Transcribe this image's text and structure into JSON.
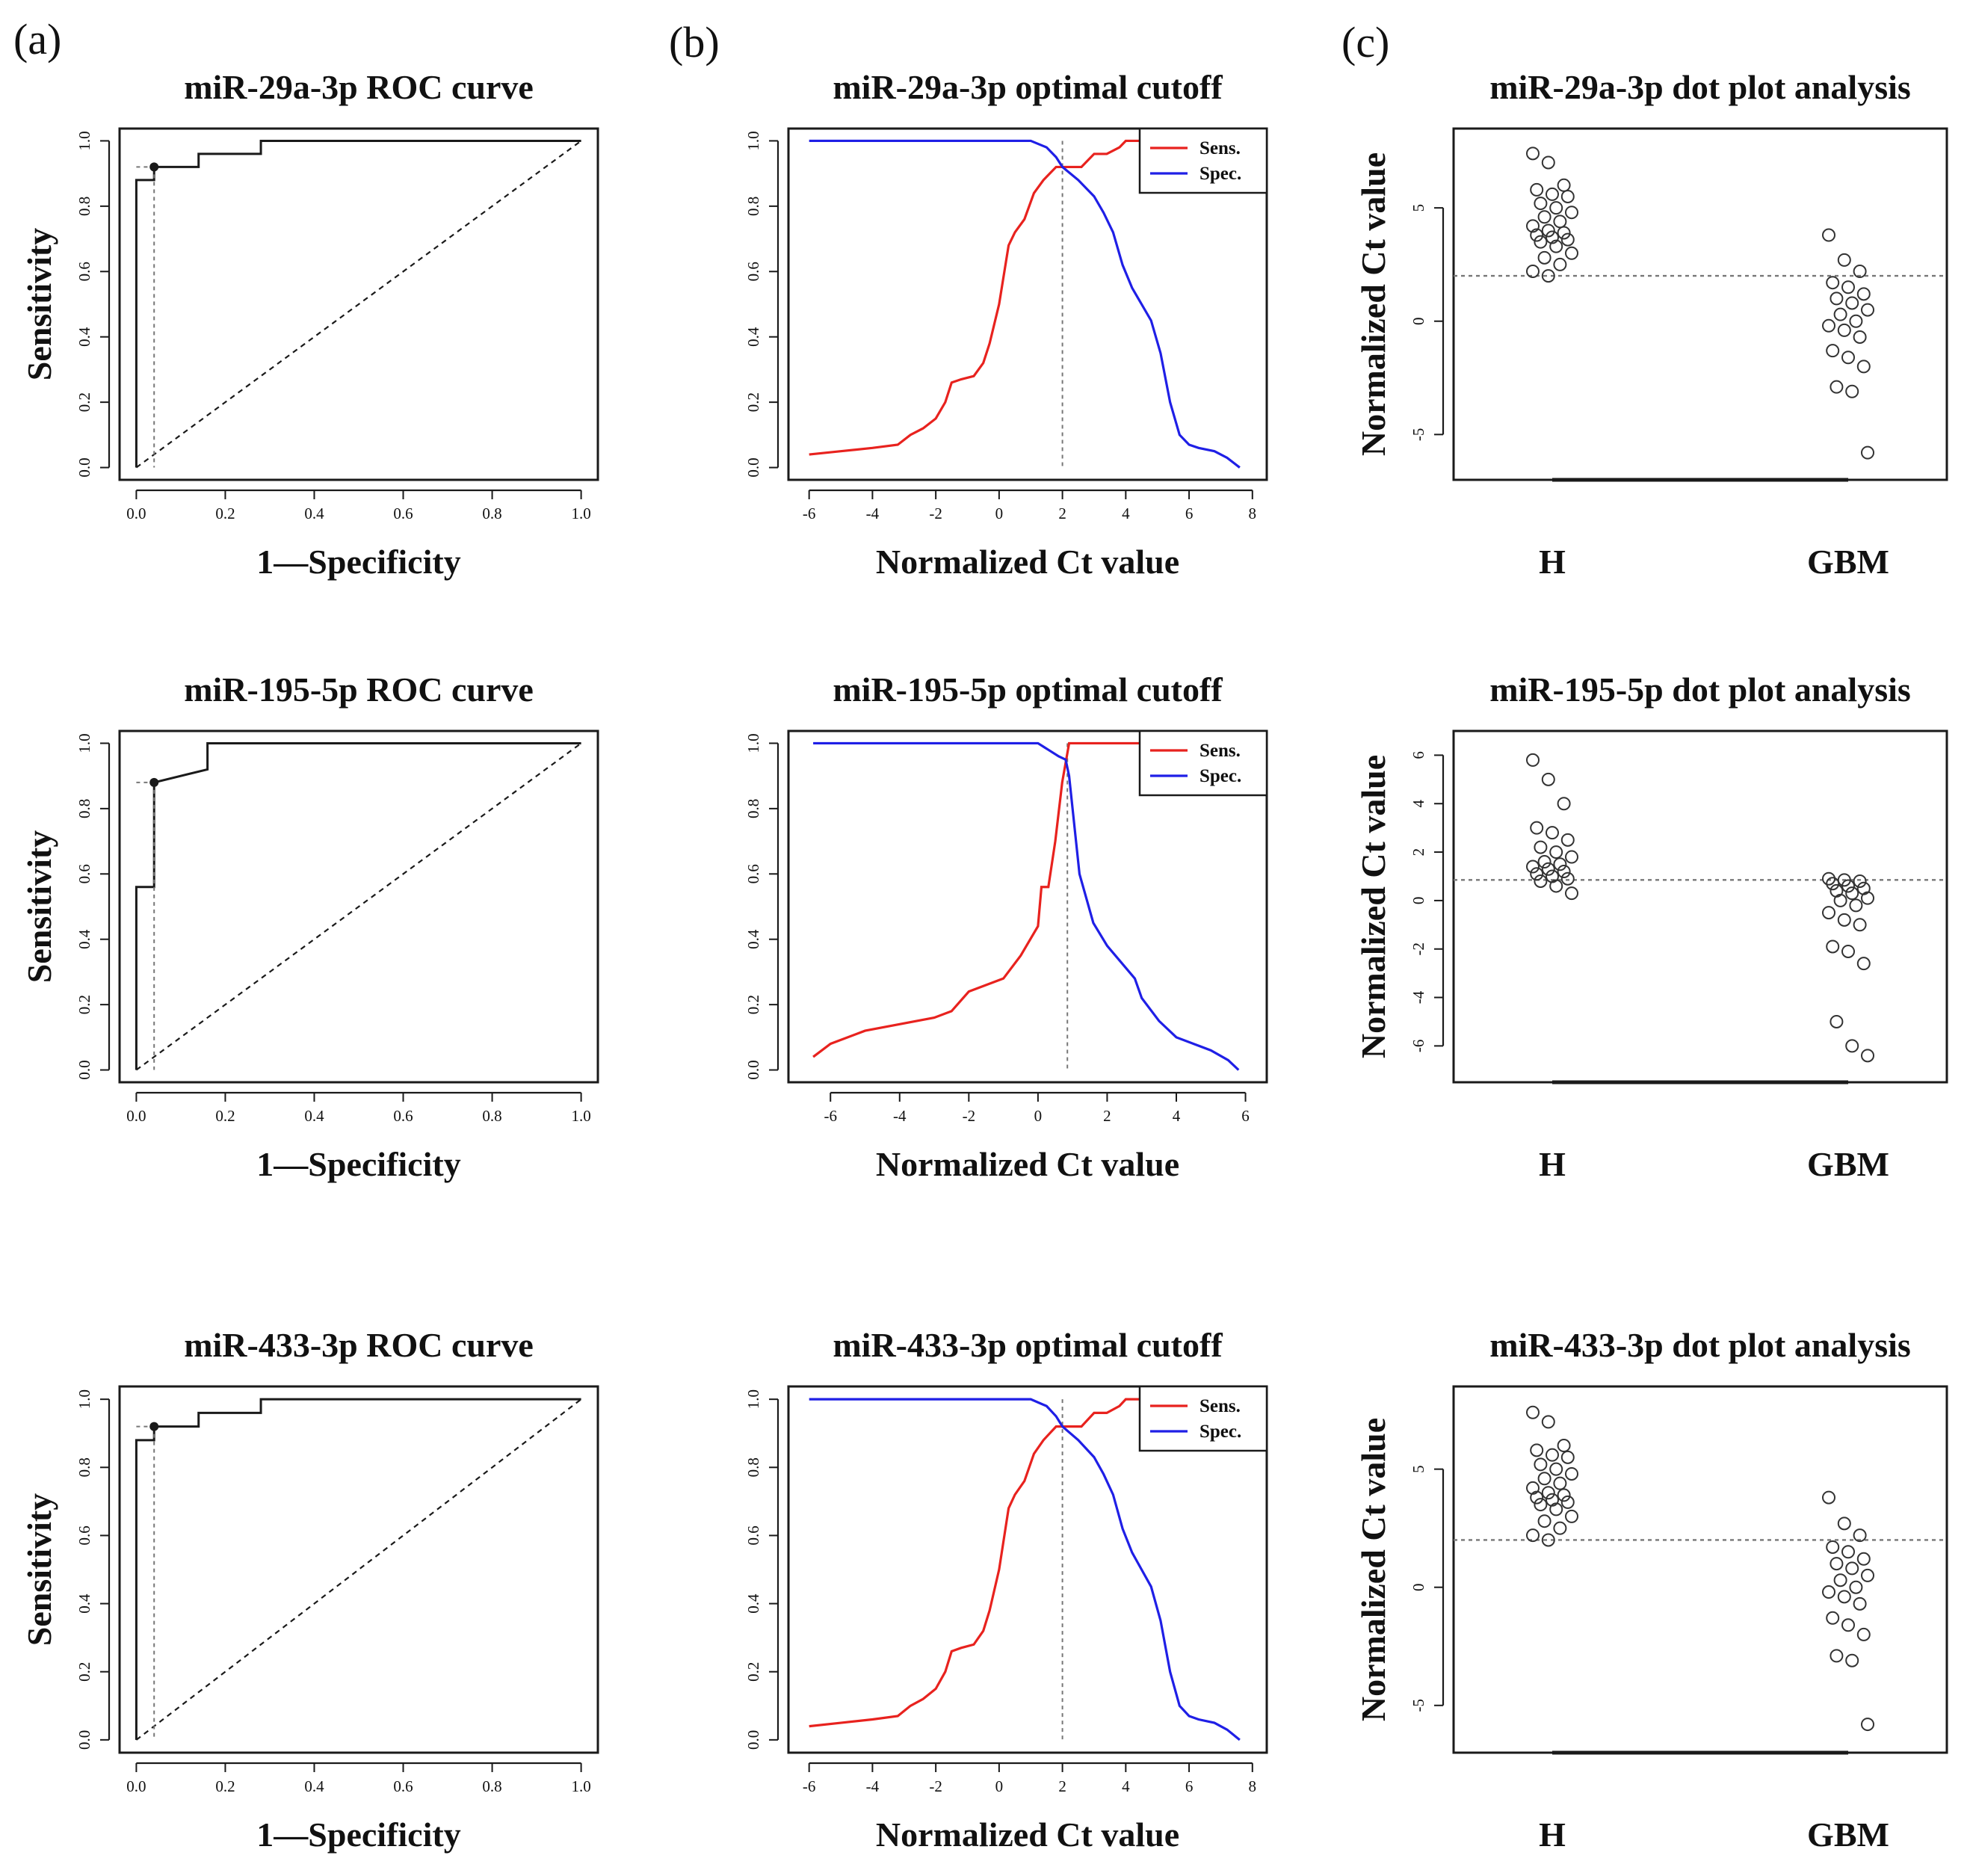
{
  "panel_letters": [
    "(a)",
    "(b)",
    "(c)"
  ],
  "colors": {
    "sens": "#e8221e",
    "spec": "#1f1fe6",
    "ink": "#1a1a1a",
    "ref": "#777777"
  },
  "chart_data": [
    {
      "type": "line",
      "id": "roc1",
      "row": 0,
      "col": 0,
      "title": "miR-29a-3p ROC curve",
      "xlabel": "1—Specificity",
      "ylabel": "Sensitivity",
      "xlim": [
        0,
        1
      ],
      "ylim": [
        0,
        1
      ],
      "xticks": [
        0,
        0.2,
        0.4,
        0.6,
        0.8,
        1
      ],
      "xtick_labels": [
        "0.0",
        "0.2",
        "0.4",
        "0.6",
        "0.8",
        "1.0"
      ],
      "yticks": [
        0,
        0.2,
        0.4,
        0.6,
        0.8,
        1
      ],
      "ytick_labels": [
        "0.0",
        "0.2",
        "0.4",
        "0.6",
        "0.8",
        "1.0"
      ],
      "series": [
        {
          "name": "ROC",
          "x": [
            0,
            0,
            0.04,
            0.04,
            0.14,
            0.14,
            0.28,
            0.28,
            1
          ],
          "y": [
            0,
            0.88,
            0.88,
            0.92,
            0.92,
            0.96,
            0.96,
            1,
            1
          ]
        }
      ],
      "optimal_point": [
        0.04,
        0.92
      ]
    },
    {
      "type": "line",
      "id": "cut1",
      "row": 0,
      "col": 1,
      "title": "miR-29a-3p optimal cutoff",
      "xlabel": "Normalized Ct value",
      "ylabel": "",
      "xlim": [
        -6.2,
        8
      ],
      "ylim": [
        0,
        1
      ],
      "xticks": [
        -6,
        -4,
        -2,
        0,
        2,
        4,
        6,
        8
      ],
      "xtick_labels": [
        "-6",
        "-4",
        "-2",
        "0",
        "2",
        "4",
        "6",
        "8"
      ],
      "yticks": [
        0,
        0.2,
        0.4,
        0.6,
        0.8,
        1
      ],
      "ytick_labels": [
        "0.0",
        "0.2",
        "0.4",
        "0.6",
        "0.8",
        "1.0"
      ],
      "legend": [
        "Sens.",
        "Spec."
      ],
      "cutoff": 2,
      "series": [
        {
          "name": "Sens.",
          "x": [
            -6,
            -5,
            -4,
            -3.2,
            -2.8,
            -2.4,
            -2,
            -1.7,
            -1.5,
            -1.2,
            -0.8,
            -0.5,
            -0.3,
            0,
            0.3,
            0.5,
            0.8,
            1.1,
            1.4,
            1.6,
            1.8,
            2,
            2.3,
            2.6,
            3,
            3.4,
            3.8,
            4,
            5,
            6,
            7,
            7.6
          ],
          "y": [
            0.04,
            0.05,
            0.06,
            0.07,
            0.1,
            0.12,
            0.15,
            0.2,
            0.26,
            0.27,
            0.28,
            0.32,
            0.38,
            0.5,
            0.68,
            0.72,
            0.76,
            0.84,
            0.88,
            0.9,
            0.92,
            0.92,
            0.92,
            0.92,
            0.96,
            0.96,
            0.98,
            1,
            1,
            1,
            1,
            1
          ]
        },
        {
          "name": "Spec.",
          "x": [
            -6,
            -4,
            -2,
            0,
            1,
            1.5,
            1.8,
            2,
            2.5,
            3,
            3.3,
            3.6,
            3.9,
            4.2,
            4.5,
            4.8,
            5.1,
            5.4,
            5.7,
            6,
            6.3,
            6.8,
            7.2,
            7.6
          ],
          "y": [
            1,
            1,
            1,
            1,
            1,
            0.98,
            0.95,
            0.92,
            0.88,
            0.83,
            0.78,
            0.72,
            0.62,
            0.55,
            0.5,
            0.45,
            0.35,
            0.2,
            0.1,
            0.07,
            0.06,
            0.05,
            0.03,
            0
          ]
        }
      ]
    },
    {
      "type": "scatter",
      "id": "dot1",
      "row": 0,
      "col": 2,
      "title": "miR-29a-3p dot plot analysis",
      "xlabel": "",
      "ylabel": "Normalized Ct value",
      "categories": [
        "H",
        "GBM"
      ],
      "ylim": [
        -7,
        8.5
      ],
      "yticks": [
        -5,
        0,
        5
      ],
      "ytick_labels": [
        "-5",
        "0",
        "5"
      ],
      "cutoff": 2,
      "series": [
        {
          "name": "H",
          "values": [
            7.4,
            7,
            6,
            5.8,
            5.6,
            5.5,
            5.2,
            5,
            4.8,
            4.6,
            4.4,
            4.2,
            4,
            3.9,
            3.8,
            3.7,
            3.6,
            3.5,
            3.3,
            3,
            2.8,
            2.5,
            2.2,
            2
          ]
        },
        {
          "name": "GBM",
          "values": [
            3.8,
            2.7,
            2.2,
            1.7,
            1.5,
            1.2,
            1,
            0.8,
            0.5,
            0.3,
            0,
            -0.2,
            -0.4,
            -0.7,
            -1.3,
            -1.6,
            -2,
            -2.9,
            -3.1,
            -5.8
          ]
        }
      ]
    },
    {
      "type": "line",
      "id": "roc2",
      "row": 1,
      "col": 0,
      "title": "miR-195-5p ROC curve",
      "xlabel": "1—Specificity",
      "ylabel": "Sensitivity",
      "xlim": [
        0,
        1
      ],
      "ylim": [
        0,
        1
      ],
      "xticks": [
        0,
        0.2,
        0.4,
        0.6,
        0.8,
        1
      ],
      "xtick_labels": [
        "0.0",
        "0.2",
        "0.4",
        "0.6",
        "0.8",
        "1.0"
      ],
      "yticks": [
        0,
        0.2,
        0.4,
        0.6,
        0.8,
        1
      ],
      "ytick_labels": [
        "0.0",
        "0.2",
        "0.4",
        "0.6",
        "0.8",
        "1.0"
      ],
      "series": [
        {
          "name": "ROC",
          "x": [
            0,
            0,
            0.04,
            0.04,
            0.04,
            0.16,
            0.16,
            1
          ],
          "y": [
            0,
            0.56,
            0.56,
            0.88,
            0.88,
            0.92,
            1,
            1
          ]
        }
      ],
      "optimal_point": [
        0.04,
        0.88
      ]
    },
    {
      "type": "line",
      "id": "cut2",
      "row": 1,
      "col": 1,
      "title": "miR-195-5p optimal cutoff",
      "xlabel": "Normalized Ct value",
      "ylabel": "",
      "xlim": [
        -6.8,
        6.2
      ],
      "ylim": [
        0,
        1
      ],
      "xticks": [
        -6,
        -4,
        -2,
        0,
        2,
        4,
        6
      ],
      "xtick_labels": [
        "-6",
        "-4",
        "-2",
        "0",
        "2",
        "4",
        "6"
      ],
      "yticks": [
        0,
        0.2,
        0.4,
        0.6,
        0.8,
        1
      ],
      "ytick_labels": [
        "0.0",
        "0.2",
        "0.4",
        "0.6",
        "0.8",
        "1.0"
      ],
      "legend": [
        "Sens.",
        "Spec."
      ],
      "cutoff": 0.85,
      "series": [
        {
          "name": "Sens.",
          "x": [
            -6.5,
            -6,
            -5,
            -4,
            -3,
            -2.5,
            -2,
            -1.5,
            -1,
            -0.5,
            0,
            0.1,
            0.3,
            0.5,
            0.7,
            0.9,
            1.2,
            2,
            3,
            4,
            5,
            6
          ],
          "y": [
            0.04,
            0.08,
            0.12,
            0.14,
            0.16,
            0.18,
            0.24,
            0.26,
            0.28,
            0.35,
            0.44,
            0.56,
            0.56,
            0.7,
            0.88,
            1,
            1,
            1,
            1,
            1,
            1,
            1
          ]
        },
        {
          "name": "Spec.",
          "x": [
            -6.5,
            -4,
            -2,
            0,
            0.3,
            0.6,
            0.8,
            0.9,
            1,
            1.2,
            1.6,
            2,
            2.4,
            2.8,
            3,
            3.5,
            4,
            4.5,
            5,
            5.5,
            5.8
          ],
          "y": [
            1,
            1,
            1,
            1,
            0.98,
            0.96,
            0.95,
            0.9,
            0.8,
            0.6,
            0.45,
            0.38,
            0.33,
            0.28,
            0.22,
            0.15,
            0.1,
            0.08,
            0.06,
            0.03,
            0
          ]
        }
      ]
    },
    {
      "type": "scatter",
      "id": "dot2",
      "row": 1,
      "col": 2,
      "title": "miR-195-5p dot plot analysis",
      "xlabel": "",
      "ylabel": "Normalized Ct value",
      "categories": [
        "H",
        "GBM"
      ],
      "ylim": [
        -7.5,
        7
      ],
      "yticks": [
        -6,
        -4,
        -2,
        0,
        2,
        4,
        6
      ],
      "ytick_labels": [
        "-6",
        "-4",
        "-2",
        "0",
        "2",
        "4",
        "6"
      ],
      "cutoff": 0.85,
      "series": [
        {
          "name": "H",
          "values": [
            5.8,
            5,
            4,
            3,
            2.8,
            2.5,
            2.2,
            2,
            1.8,
            1.6,
            1.5,
            1.4,
            1.3,
            1.2,
            1.1,
            1,
            0.9,
            0.8,
            0.6,
            0.3
          ]
        },
        {
          "name": "GBM",
          "values": [
            0.9,
            0.85,
            0.8,
            0.7,
            0.6,
            0.5,
            0.4,
            0.3,
            0.1,
            0,
            -0.2,
            -0.5,
            -0.8,
            -1,
            -1.9,
            -2.1,
            -2.6,
            -5,
            -6,
            -6.4
          ]
        }
      ]
    },
    {
      "type": "line",
      "id": "roc3",
      "row": 2,
      "col": 0,
      "title": "miR-433-3p ROC curve",
      "xlabel": "1—Specificity",
      "ylabel": "Sensitivity",
      "xlim": [
        0,
        1
      ],
      "ylim": [
        0,
        1
      ],
      "xticks": [
        0,
        0.2,
        0.4,
        0.6,
        0.8,
        1
      ],
      "xtick_labels": [
        "0.0",
        "0.2",
        "0.4",
        "0.6",
        "0.8",
        "1.0"
      ],
      "yticks": [
        0,
        0.2,
        0.4,
        0.6,
        0.8,
        1
      ],
      "ytick_labels": [
        "0.0",
        "0.2",
        "0.4",
        "0.6",
        "0.8",
        "1.0"
      ],
      "series": [
        {
          "name": "ROC",
          "x": [
            0,
            0,
            0.04,
            0.04,
            0.14,
            0.14,
            0.28,
            0.28,
            1
          ],
          "y": [
            0,
            0.88,
            0.88,
            0.92,
            0.92,
            0.96,
            0.96,
            1,
            1
          ]
        }
      ],
      "optimal_point": [
        0.04,
        0.92
      ]
    },
    {
      "type": "line",
      "id": "cut3",
      "row": 2,
      "col": 1,
      "title": "miR-433-3p optimal cutoff",
      "xlabel": "Normalized Ct value",
      "ylabel": "",
      "xlim": [
        -6.2,
        8
      ],
      "ylim": [
        0,
        1
      ],
      "xticks": [
        -6,
        -4,
        -2,
        0,
        2,
        4,
        6,
        8
      ],
      "xtick_labels": [
        "-6",
        "-4",
        "-2",
        "0",
        "2",
        "4",
        "6",
        "8"
      ],
      "yticks": [
        0,
        0.2,
        0.4,
        0.6,
        0.8,
        1
      ],
      "ytick_labels": [
        "0.0",
        "0.2",
        "0.4",
        "0.6",
        "0.8",
        "1.0"
      ],
      "legend": [
        "Sens.",
        "Spec."
      ],
      "cutoff": 2,
      "series": [
        {
          "name": "Sens.",
          "x": [
            -6,
            -5,
            -4,
            -3.2,
            -2.8,
            -2.4,
            -2,
            -1.7,
            -1.5,
            -1.2,
            -0.8,
            -0.5,
            -0.3,
            0,
            0.3,
            0.5,
            0.8,
            1.1,
            1.4,
            1.6,
            1.8,
            2,
            2.3,
            2.6,
            3,
            3.4,
            3.8,
            4,
            5,
            6,
            7,
            7.6
          ],
          "y": [
            0.04,
            0.05,
            0.06,
            0.07,
            0.1,
            0.12,
            0.15,
            0.2,
            0.26,
            0.27,
            0.28,
            0.32,
            0.38,
            0.5,
            0.68,
            0.72,
            0.76,
            0.84,
            0.88,
            0.9,
            0.92,
            0.92,
            0.92,
            0.92,
            0.96,
            0.96,
            0.98,
            1,
            1,
            1,
            1,
            1
          ]
        },
        {
          "name": "Spec.",
          "x": [
            -6,
            -4,
            -2,
            0,
            1,
            1.5,
            1.8,
            2,
            2.5,
            3,
            3.3,
            3.6,
            3.9,
            4.2,
            4.5,
            4.8,
            5.1,
            5.4,
            5.7,
            6,
            6.3,
            6.8,
            7.2,
            7.6
          ],
          "y": [
            1,
            1,
            1,
            1,
            1,
            0.98,
            0.95,
            0.92,
            0.88,
            0.83,
            0.78,
            0.72,
            0.62,
            0.55,
            0.5,
            0.45,
            0.35,
            0.2,
            0.1,
            0.07,
            0.06,
            0.05,
            0.03,
            0
          ]
        }
      ]
    },
    {
      "type": "scatter",
      "id": "dot3",
      "row": 2,
      "col": 2,
      "title": "miR-433-3p dot plot analysis",
      "xlabel": "",
      "ylabel": "Normalized Ct value",
      "categories": [
        "H",
        "GBM"
      ],
      "ylim": [
        -7,
        8.5
      ],
      "yticks": [
        -5,
        0,
        5
      ],
      "ytick_labels": [
        "-5",
        "0",
        "5"
      ],
      "cutoff": 2,
      "series": [
        {
          "name": "H",
          "values": [
            7.4,
            7,
            6,
            5.8,
            5.6,
            5.5,
            5.2,
            5,
            4.8,
            4.6,
            4.4,
            4.2,
            4,
            3.9,
            3.8,
            3.7,
            3.6,
            3.5,
            3.3,
            3,
            2.8,
            2.5,
            2.2,
            2
          ]
        },
        {
          "name": "GBM",
          "values": [
            3.8,
            2.7,
            2.2,
            1.7,
            1.5,
            1.2,
            1,
            0.8,
            0.5,
            0.3,
            0,
            -0.2,
            -0.4,
            -0.7,
            -1.3,
            -1.6,
            -2,
            -2.9,
            -3.1,
            -5.8
          ]
        }
      ]
    }
  ]
}
